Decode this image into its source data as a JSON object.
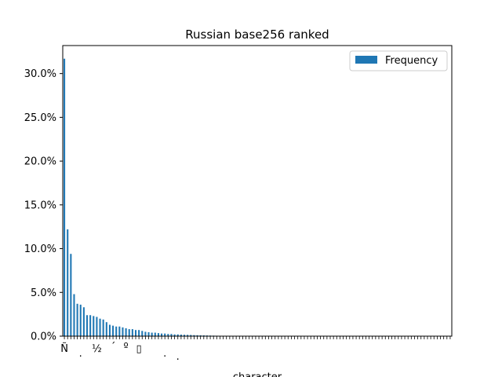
{
  "chart_data": {
    "type": "bar",
    "title": "Russian base256 ranked",
    "xlabel": "character",
    "ylabel": "",
    "ylim": [
      0,
      0.332
    ],
    "y_ticks": [
      0,
      0.05,
      0.1,
      0.15,
      0.2,
      0.25,
      0.3
    ],
    "y_tick_labels": [
      "0.0%",
      "5.0%",
      "10.0%",
      "15.0%",
      "20.0%",
      "25.0%",
      "30.0%"
    ],
    "grid": false,
    "legend": {
      "placement": "top-right",
      "entries": [
        "Frequency"
      ]
    },
    "bar_color": "#1f77b4",
    "x_tick_labels": [
      "Ñ",
      ".",
      "½",
      "´",
      "º",
      "▯",
      ".",
      "."
    ],
    "series": [
      {
        "name": "Frequency",
        "values": [
          0.317,
          0.122,
          0.094,
          0.048,
          0.037,
          0.036,
          0.033,
          0.024,
          0.024,
          0.023,
          0.022,
          0.02,
          0.019,
          0.016,
          0.013,
          0.012,
          0.011,
          0.011,
          0.01,
          0.009,
          0.008,
          0.008,
          0.007,
          0.007,
          0.006,
          0.005,
          0.0045,
          0.004,
          0.004,
          0.0035,
          0.003,
          0.003,
          0.0025,
          0.0025,
          0.002,
          0.002,
          0.0018,
          0.0016,
          0.0015,
          0.0014,
          0.0012,
          0.0011,
          0.001,
          0.0009,
          0.0008,
          0.0007,
          0.0006,
          0.0005,
          0.0004,
          0.0003,
          0.0003,
          0.0002,
          0.0002,
          0.0002,
          0.0001,
          0.0001,
          0.0001,
          0.0001,
          0.0001,
          0.0001,
          0.0001,
          0.0001,
          0.0001,
          0.0001,
          0.0001,
          0.0001,
          0.0001,
          0.0001,
          0.0001,
          0.0001,
          0.0001,
          0.0001,
          0.0001,
          0.0001,
          0.0001,
          0.0001,
          0.0001,
          0.0001,
          0.0001,
          0.0001,
          0.0001,
          0.0001,
          0.0001,
          0.0001,
          0.0001,
          0.0001,
          0.0001,
          0.0001,
          0.0001,
          0.0001,
          0.0001,
          0.0001,
          0.0001,
          0.0001,
          0.0001,
          0.0001,
          0.0001,
          0.0001,
          0.0001,
          0.0001,
          0.0001,
          0.0001,
          0.0001,
          0.0001,
          0.0001,
          0.0001,
          0.0001,
          0.0001,
          0.0001,
          0.0001,
          0.0001,
          0.0001,
          0.0001,
          0.0001,
          0.0001,
          0.0001,
          0.0001,
          0.0001,
          0.0001,
          0.0001
        ]
      }
    ]
  }
}
